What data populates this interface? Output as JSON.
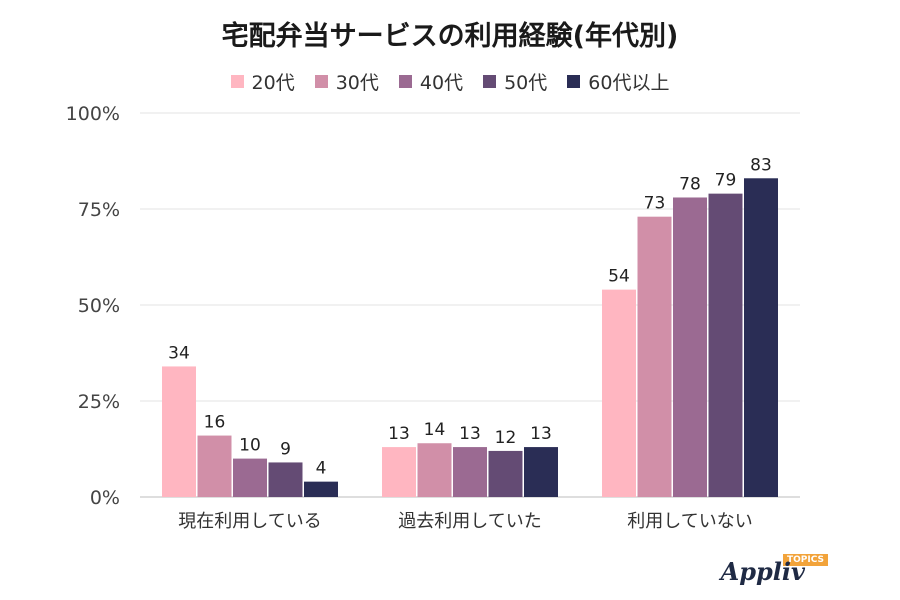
{
  "chart_data": {
    "type": "bar",
    "title": "宅配弁当サービスの利用経験(年代別)",
    "categories": [
      "現在利用している",
      "過去利用していた",
      "利用していない"
    ],
    "series": [
      {
        "name": "20代",
        "color": "#ffb6c1",
        "values": [
          34,
          13,
          54
        ]
      },
      {
        "name": "30代",
        "color": "#d18fa8",
        "values": [
          16,
          14,
          73
        ]
      },
      {
        "name": "40代",
        "color": "#9b6a92",
        "values": [
          10,
          13,
          78
        ]
      },
      {
        "name": "50代",
        "color": "#644b74",
        "values": [
          9,
          12,
          79
        ]
      },
      {
        "name": "60代以上",
        "color": "#2a2d55",
        "values": [
          4,
          13,
          83
        ]
      }
    ],
    "bar_labels": [
      [
        "34",
        "13",
        "54"
      ],
      [
        "16",
        "14",
        "73"
      ],
      [
        "10",
        "13",
        "78"
      ],
      [
        "9",
        "12",
        "79"
      ],
      [
        "4",
        "13",
        "83"
      ]
    ],
    "ylim": [
      0,
      100
    ],
    "yticks": [
      0,
      25,
      50,
      75,
      100
    ],
    "ytick_labels": [
      "0%",
      "25%",
      "50%",
      "75%",
      "100%"
    ],
    "grid": true,
    "legend_position": "top"
  },
  "brand": {
    "name": "Appliv",
    "tag": "TOPICS"
  }
}
